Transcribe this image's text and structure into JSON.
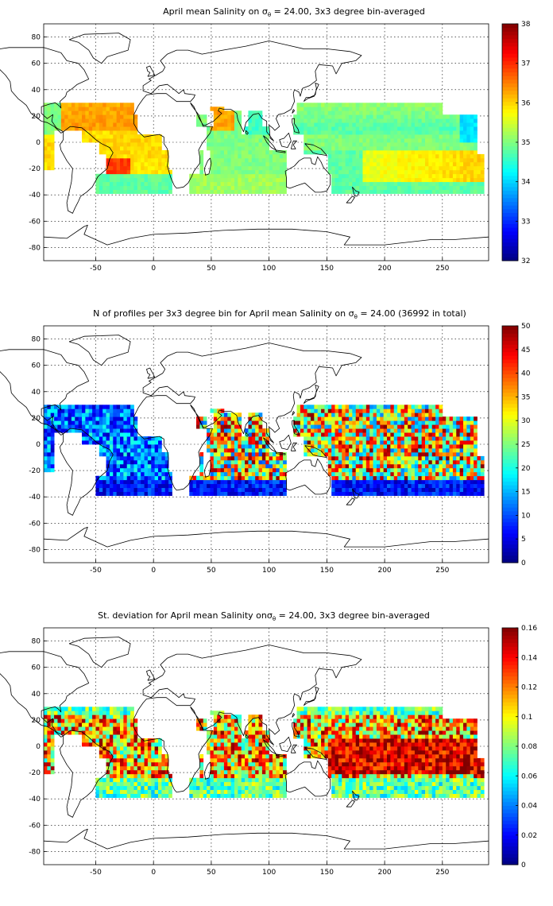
{
  "chart_data": [
    {
      "type": "heatmap",
      "title": "April mean Salinity on σθ = 24.00, 3x3 degree bin-averaged",
      "title_parts": {
        "before": "April mean Salinity on ",
        "symbol": "σ",
        "sub": "θ",
        "after": " = 24.00, 3x3 degree bin-averaged"
      },
      "xlim": [
        -95,
        290
      ],
      "ylim": [
        -90,
        90
      ],
      "xticks": [
        -50,
        0,
        50,
        100,
        150,
        200,
        250
      ],
      "yticks": [
        -80,
        -60,
        -40,
        -20,
        0,
        20,
        40,
        60,
        80
      ],
      "colorbar": {
        "min": 32,
        "max": 38,
        "ticks": [
          32,
          33,
          34,
          35,
          36,
          37,
          38
        ]
      },
      "colormap": "jet",
      "grid": true
    },
    {
      "type": "heatmap",
      "title": "N of profiles per 3x3 degree bin for April mean Salinity on σθ = 24.00 (36992 in total)",
      "title_parts": {
        "before": "N of profiles per 3x3 degree bin for April mean Salinity on ",
        "symbol": "σ",
        "sub": "θ",
        "after": " = 24.00 (36992 in total)"
      },
      "total_profiles": 36992,
      "xlim": [
        -95,
        290
      ],
      "ylim": [
        -90,
        90
      ],
      "xticks": [
        -50,
        0,
        50,
        100,
        150,
        200,
        250
      ],
      "yticks": [
        -80,
        -60,
        -40,
        -20,
        0,
        20,
        40,
        60,
        80
      ],
      "colorbar": {
        "min": 0,
        "max": 50,
        "ticks": [
          0,
          5,
          10,
          15,
          20,
          25,
          30,
          35,
          40,
          45,
          50
        ]
      },
      "colormap": "jet",
      "grid": true
    },
    {
      "type": "heatmap",
      "title": "St. deviation for April mean Salinity onσθ = 24.00, 3x3 degree bin-averaged",
      "title_parts": {
        "before": "St. deviation for April mean Salinity on",
        "symbol": "σ",
        "sub": "θ",
        "after": " = 24.00, 3x3 degree bin-averaged"
      },
      "xlim": [
        -95,
        290
      ],
      "ylim": [
        -90,
        90
      ],
      "xticks": [
        -50,
        0,
        50,
        100,
        150,
        200,
        250
      ],
      "yticks": [
        -80,
        -60,
        -40,
        -20,
        0,
        20,
        40,
        60,
        80
      ],
      "colorbar": {
        "min": 0,
        "max": 0.16,
        "ticks": [
          0,
          0.02,
          0.04,
          0.06,
          0.08,
          0.1,
          0.12,
          0.14,
          0.16
        ]
      },
      "colormap": "jet",
      "grid": true
    }
  ]
}
